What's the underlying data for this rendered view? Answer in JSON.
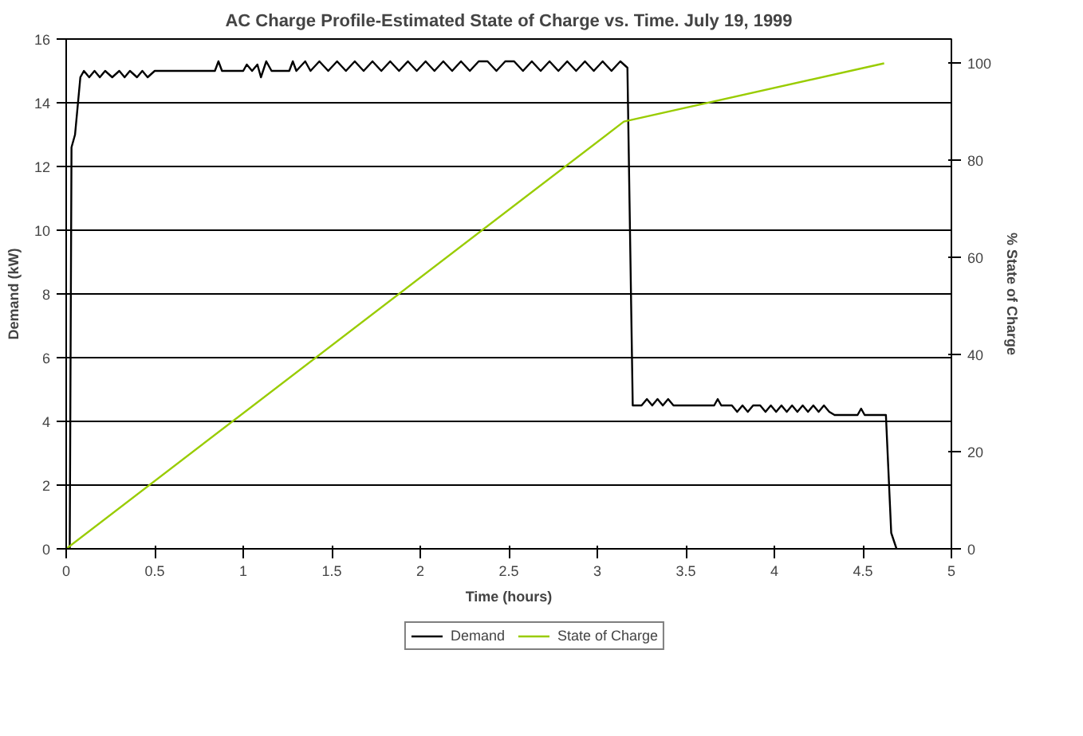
{
  "chart_data": {
    "type": "line",
    "title": "AC Charge Profile-Estimated State of Charge vs. Time. July 19, 1999",
    "xlabel": "Time (hours)",
    "ylabel": "Demand (kW)",
    "y2label": "% State of Charge",
    "xlim": [
      0,
      5
    ],
    "xticks": [
      0,
      0.5,
      1,
      1.5,
      2,
      2.5,
      3,
      3.5,
      4,
      4.5,
      5
    ],
    "ylim": [
      0,
      16
    ],
    "yticks": [
      0,
      2,
      4,
      6,
      8,
      10,
      12,
      14,
      16
    ],
    "y2lim": [
      0,
      105
    ],
    "y2ticks": [
      0,
      20,
      40,
      60,
      80,
      100
    ],
    "grid": "y",
    "legend": "bottom",
    "line_style": "solid",
    "marker": "none",
    "series": [
      {
        "name": "Demand",
        "color": "#000000",
        "x": [
          0,
          0.02,
          0.03,
          0.05,
          0.08,
          0.1,
          0.13,
          0.16,
          0.19,
          0.22,
          0.26,
          0.3,
          0.33,
          0.36,
          0.4,
          0.43,
          0.46,
          0.5,
          0.84,
          0.86,
          0.88,
          1.0,
          1.02,
          1.05,
          1.08,
          1.1,
          1.13,
          1.16,
          1.26,
          1.28,
          1.3,
          1.35,
          1.38,
          1.43,
          1.48,
          1.53,
          1.58,
          1.63,
          1.68,
          1.73,
          1.78,
          1.83,
          1.88,
          1.93,
          1.98,
          2.03,
          2.08,
          2.13,
          2.18,
          2.23,
          2.28,
          2.33,
          2.38,
          2.43,
          2.48,
          2.53,
          2.58,
          2.63,
          2.68,
          2.73,
          2.78,
          2.83,
          2.88,
          2.93,
          2.98,
          3.03,
          3.08,
          3.13,
          3.17,
          3.2,
          3.25,
          3.28,
          3.31,
          3.34,
          3.37,
          3.4,
          3.43,
          3.47,
          3.66,
          3.68,
          3.7,
          3.76,
          3.79,
          3.82,
          3.85,
          3.88,
          3.92,
          3.95,
          3.98,
          4.01,
          4.04,
          4.07,
          4.1,
          4.13,
          4.16,
          4.19,
          4.22,
          4.25,
          4.28,
          4.31,
          4.34,
          4.47,
          4.49,
          4.51,
          4.63,
          4.66,
          4.69
        ],
        "values": [
          0,
          0,
          12.6,
          13,
          14.8,
          15,
          14.8,
          15,
          14.8,
          15,
          14.8,
          15,
          14.8,
          15,
          14.8,
          15,
          14.8,
          15,
          15,
          15.3,
          15,
          15,
          15.2,
          15,
          15.2,
          14.8,
          15.3,
          15,
          15,
          15.3,
          15,
          15.3,
          15,
          15.3,
          15,
          15.3,
          15,
          15.3,
          15,
          15.3,
          15,
          15.3,
          15,
          15.3,
          15,
          15.3,
          15,
          15.3,
          15,
          15.3,
          15,
          15.3,
          15.3,
          15,
          15.3,
          15.3,
          15,
          15.3,
          15,
          15.3,
          15,
          15.3,
          15,
          15.3,
          15,
          15.3,
          15,
          15.3,
          15.1,
          4.5,
          4.5,
          4.7,
          4.5,
          4.7,
          4.5,
          4.7,
          4.5,
          4.5,
          4.5,
          4.7,
          4.5,
          4.5,
          4.3,
          4.5,
          4.3,
          4.5,
          4.5,
          4.3,
          4.5,
          4.3,
          4.5,
          4.3,
          4.5,
          4.3,
          4.5,
          4.3,
          4.5,
          4.3,
          4.5,
          4.3,
          4.2,
          4.2,
          4.4,
          4.2,
          4.2,
          0.5,
          0
        ]
      },
      {
        "name": "State of Charge",
        "color": "#99cc00",
        "axis": "y2",
        "x": [
          0,
          3.15,
          4.62
        ],
        "values": [
          0,
          88,
          100
        ]
      }
    ]
  }
}
